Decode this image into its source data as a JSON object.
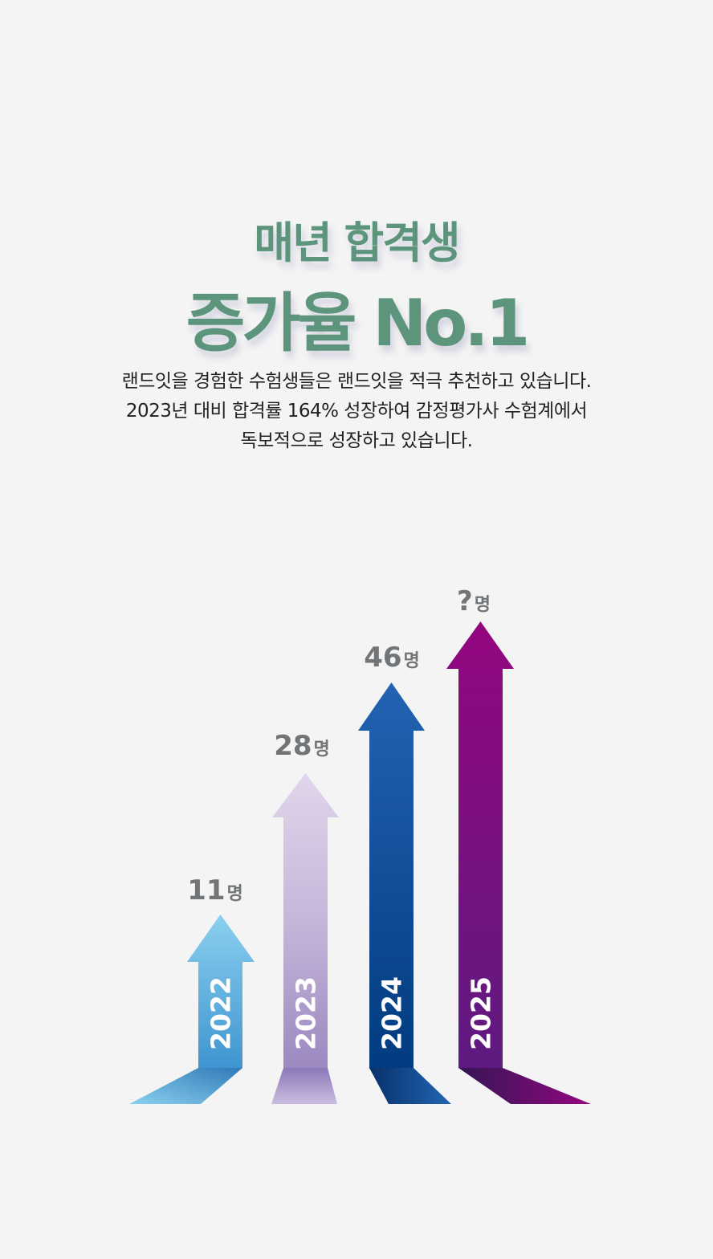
{
  "heading": {
    "line1": "매년 합격생",
    "line2": "증가율 No.1"
  },
  "description": [
    "랜드잇을 경험한 수험생들은 랜드잇을 적극 추천하고 있습니다.",
    "2023년 대비 합격률 164% 성장하여 감정평가사 수험계에서",
    "독보적으로 성장하고 있습니다."
  ],
  "chart_data": {
    "type": "bar",
    "categories": [
      "2022",
      "2023",
      "2024",
      "2025"
    ],
    "values": [
      11,
      28,
      46,
      null
    ],
    "labels": [
      "11",
      "28",
      "46",
      "?"
    ],
    "unit": "명",
    "colors": [
      "#4aa3dc",
      "#a08fc4",
      "#0d3f8a",
      "#7a1a8a"
    ]
  }
}
